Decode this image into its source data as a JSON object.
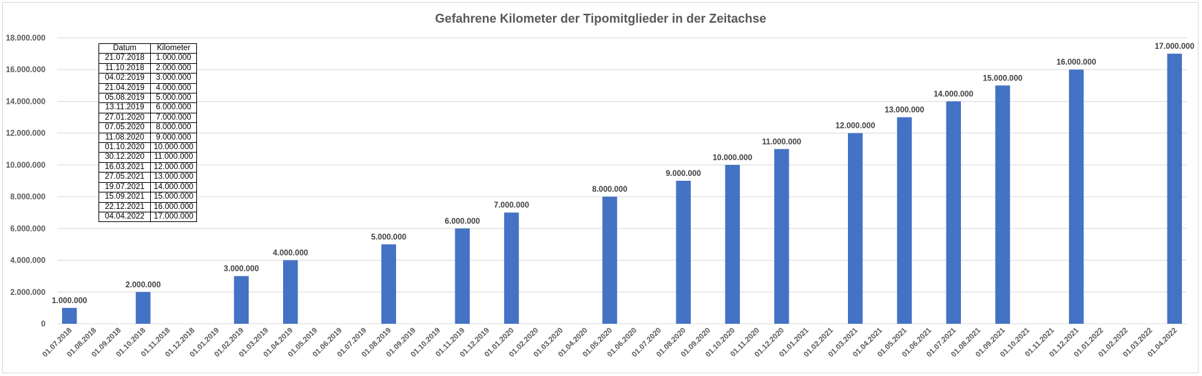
{
  "chart_data": {
    "type": "bar",
    "title": "Gefahrene Kilometer der Tipomitglieder in der Zeitachse",
    "xlabel": "",
    "ylabel": "",
    "ylim": [
      0,
      18000000
    ],
    "yticks": [
      "0",
      "2.000.000",
      "4.000.000",
      "6.000.000",
      "8.000.000",
      "10.000.000",
      "12.000.000",
      "14.000.000",
      "16.000.000",
      "18.000.000"
    ],
    "grid": true,
    "legend": "none",
    "bar_color": "#4472C4",
    "categories": [
      "01.07.2018",
      "01.08.2018",
      "01.09.2018",
      "01.10.2018",
      "01.11.2018",
      "01.12.2018",
      "01.01.2019",
      "01.02.2019",
      "01.03.2019",
      "01.04.2019",
      "01.05.2019",
      "01.06.2019",
      "01.07.2019",
      "01.08.2019",
      "01.09.2019",
      "01.10.2019",
      "01.11.2019",
      "01.12.2019",
      "01.01.2020",
      "01.02.2020",
      "01.03.2020",
      "01.04.2020",
      "01.05.2020",
      "01.06.2020",
      "01.07.2020",
      "01.08.2020",
      "01.09.2020",
      "01.10.2020",
      "01.11.2020",
      "01.12.2020",
      "01.01.2021",
      "01.02.2021",
      "01.03.2021",
      "01.04.2021",
      "01.05.2021",
      "01.06.2021",
      "01.07.2021",
      "01.08.2021",
      "01.09.2021",
      "01.10.2021",
      "01.11.2021",
      "01.12.2021",
      "01.01.2022",
      "01.02.2022",
      "01.03.2022",
      "01.04.2022"
    ],
    "values": [
      1000000,
      null,
      null,
      2000000,
      null,
      null,
      null,
      3000000,
      null,
      4000000,
      null,
      null,
      null,
      5000000,
      null,
      null,
      6000000,
      null,
      7000000,
      null,
      null,
      null,
      8000000,
      null,
      null,
      9000000,
      null,
      10000000,
      null,
      11000000,
      null,
      null,
      12000000,
      null,
      13000000,
      null,
      14000000,
      null,
      15000000,
      null,
      null,
      16000000,
      null,
      null,
      null,
      17000000
    ],
    "data_labels": [
      "1.000.000",
      null,
      null,
      "2.000.000",
      null,
      null,
      null,
      "3.000.000",
      null,
      "4.000.000",
      null,
      null,
      null,
      "5.000.000",
      null,
      null,
      "6.000.000",
      null,
      "7.000.000",
      null,
      null,
      null,
      "8.000.000",
      null,
      null,
      "9.000.000",
      null,
      "10.000.000",
      null,
      "11.000.000",
      null,
      null,
      "12.000.000",
      null,
      "13.000.000",
      null,
      "14.000.000",
      null,
      "15.000.000",
      null,
      null,
      "16.000.000",
      null,
      null,
      null,
      "17.000.000"
    ]
  },
  "table": {
    "headers": [
      "Datum",
      "Kilometer"
    ],
    "rows": [
      [
        "21.07.2018",
        "1.000.000"
      ],
      [
        "11.10.2018",
        "2.000.000"
      ],
      [
        "04.02.2019",
        "3.000.000"
      ],
      [
        "21.04.2019",
        "4.000.000"
      ],
      [
        "05.08.2019",
        "5.000.000"
      ],
      [
        "13.11.2019",
        "6.000.000"
      ],
      [
        "27.01.2020",
        "7.000.000"
      ],
      [
        "07.05.2020",
        "8.000.000"
      ],
      [
        "11.08.2020",
        "9.000.000"
      ],
      [
        "01.10.2020",
        "10.000.000"
      ],
      [
        "30.12.2020",
        "11.000.000"
      ],
      [
        "16.03.2021",
        "12.000.000"
      ],
      [
        "27.05.2021",
        "13.000.000"
      ],
      [
        "19.07.2021",
        "14.000.000"
      ],
      [
        "15.09.2021",
        "15.000.000"
      ],
      [
        "22.12.2021",
        "16.000.000"
      ],
      [
        "04.04.2022",
        "17.000.000"
      ]
    ]
  }
}
